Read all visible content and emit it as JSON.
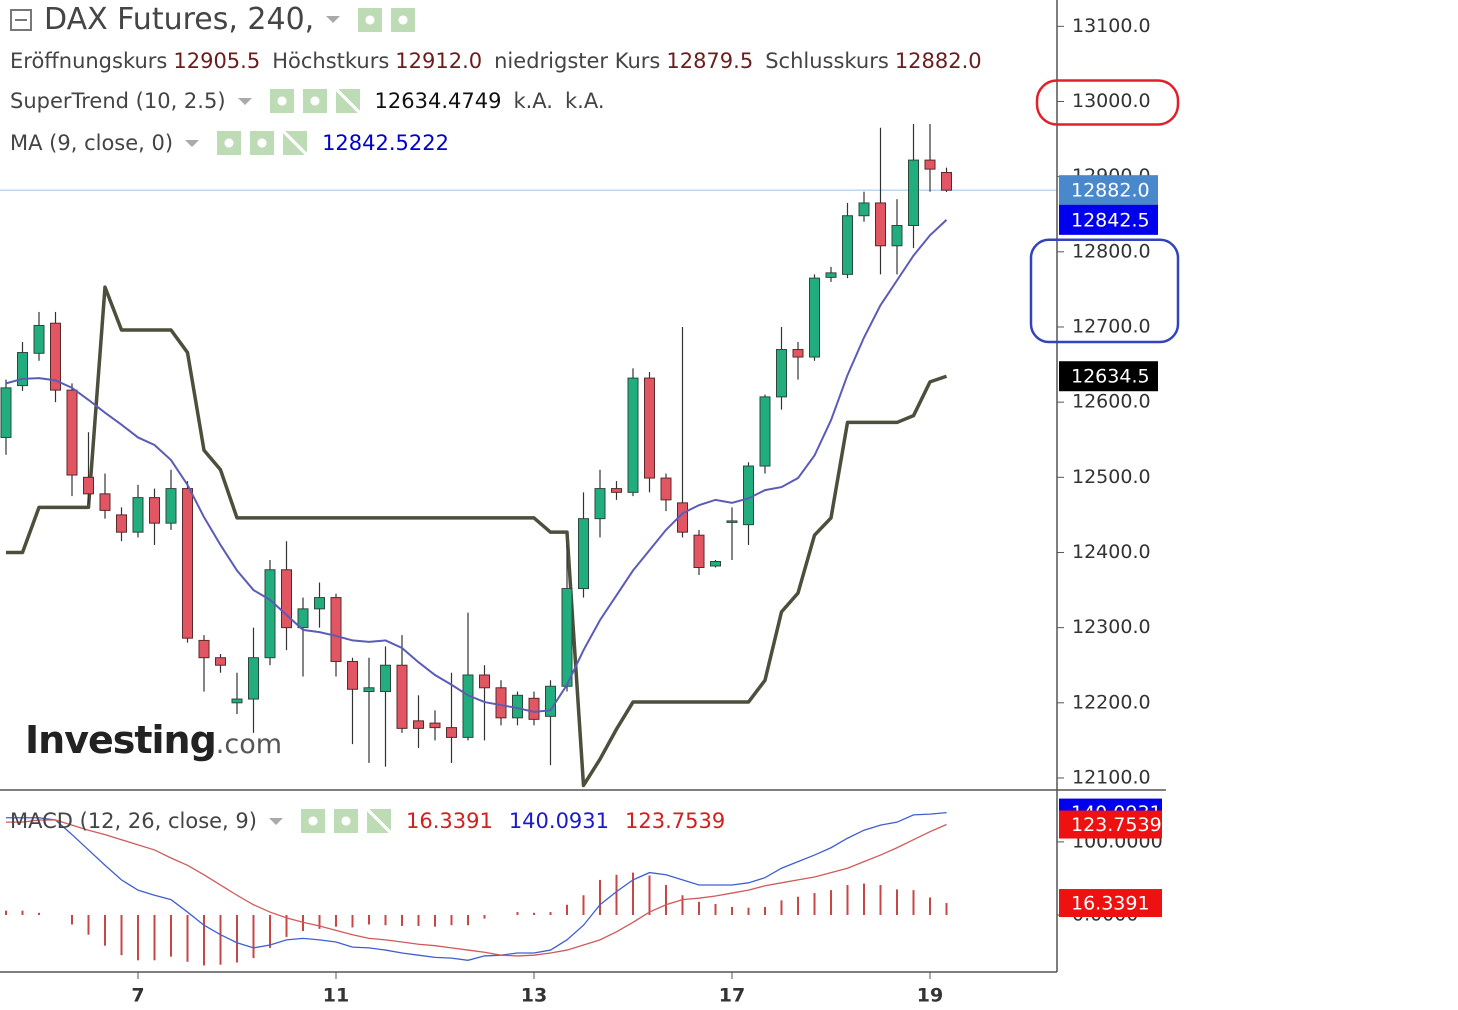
{
  "chart_data": {
    "type": "candlestick",
    "title": "DAX Futures, 240,",
    "legend": [
      {
        "name": "Eröffnungskurs",
        "value": "12905.5"
      },
      {
        "name": "Höchstkurs",
        "value": "12912.0"
      },
      {
        "name": "niedrigster Kurs",
        "value": "12879.5"
      },
      {
        "name": "Schlusskurs",
        "value": "12882.0"
      }
    ],
    "categories": [
      null,
      null,
      null,
      null,
      null,
      null,
      null,
      null,
      "7",
      null,
      null,
      null,
      null,
      null,
      null,
      null,
      null,
      null,
      null,
      null,
      "11",
      null,
      null,
      null,
      null,
      null,
      null,
      null,
      null,
      null,
      null,
      null,
      "13",
      null,
      null,
      null,
      null,
      null,
      null,
      null,
      null,
      null,
      null,
      null,
      "17",
      null,
      null,
      null,
      null,
      null,
      null,
      null,
      null,
      null,
      null,
      null,
      "19",
      null
    ],
    "open": [
      12553,
      12622,
      12665,
      12705,
      12616,
      12500,
      12478,
      12450,
      12427,
      12473,
      12439,
      12485,
      12283,
      12260,
      12200,
      12205,
      12260,
      12377,
      12300,
      12325,
      12340,
      12255,
      12215,
      12215,
      12250,
      12176,
      12173,
      12167,
      12154,
      12237,
      12220,
      12180,
      12206,
      12182,
      12222,
      12352,
      12445,
      12485,
      12480,
      12632,
      12499,
      12466,
      12423,
      12382,
      12440,
      12437,
      12515,
      12607,
      12670,
      12660,
      12766,
      12770,
      12848,
      12865,
      12808,
      12835,
      12922,
      12905.5
    ],
    "high": [
      12630,
      12680,
      12720,
      12720,
      12625,
      12560,
      12505,
      12460,
      12490,
      12485,
      12510,
      12495,
      12290,
      12265,
      12240,
      12300,
      12390,
      12415,
      12340,
      12360,
      12345,
      12260,
      12260,
      12275,
      12290,
      12210,
      12190,
      12240,
      12320,
      12250,
      12230,
      12215,
      12215,
      12230,
      12410,
      12480,
      12510,
      12495,
      12645,
      12640,
      12505,
      12700,
      12430,
      12390,
      12460,
      12520,
      12610,
      12700,
      12680,
      12770,
      12780,
      12865,
      12880,
      12965,
      12870,
      12970,
      12970,
      12912.0
    ],
    "low": [
      12530,
      12615,
      12655,
      12600,
      12475,
      12465,
      12445,
      12415,
      12420,
      12410,
      12430,
      12280,
      12215,
      12240,
      12185,
      12160,
      12250,
      12270,
      12235,
      12300,
      12235,
      12145,
      12120,
      12115,
      12160,
      12140,
      12150,
      12120,
      12150,
      12150,
      12170,
      12170,
      12170,
      12117,
      12215,
      12340,
      12420,
      12470,
      12475,
      12480,
      12455,
      12420,
      12370,
      12380,
      12390,
      12410,
      12505,
      12590,
      12630,
      12655,
      12760,
      12765,
      12840,
      12770,
      12770,
      12805,
      12880,
      12879.5
    ],
    "close": [
      12619,
      12666,
      12702,
      12616,
      12503,
      12478,
      12456,
      12427,
      12473,
      12439,
      12485,
      12286,
      12260,
      12250,
      12205,
      12260,
      12377,
      12300,
      12325,
      12340,
      12255,
      12218,
      12220,
      12250,
      12166,
      12166,
      12167,
      12154,
      12237,
      12220,
      12180,
      12210,
      12178,
      12222,
      12352,
      12445,
      12485,
      12480,
      12632,
      12499,
      12470,
      12427,
      12380,
      12388,
      12442,
      12515,
      12607,
      12670,
      12660,
      12765,
      12772,
      12848,
      12865,
      12808,
      12835,
      12922,
      12910,
      12882.0
    ],
    "up_color": "#22ad7e",
    "down_color": "#e25563",
    "ylim": [
      12084,
      13135
    ],
    "yticks": [
      {
        "value": 12100,
        "label": "12100.0"
      },
      {
        "value": 12200,
        "label": "12200.0"
      },
      {
        "value": 12300,
        "label": "12300.0"
      },
      {
        "value": 12400,
        "label": "12400.0"
      },
      {
        "value": 12500,
        "label": "12500.0"
      },
      {
        "value": 12600,
        "label": "12600.0"
      },
      {
        "value": 12700,
        "label": "12700.0"
      },
      {
        "value": 12800,
        "label": "12800.0"
      },
      {
        "value": 12900,
        "label": "12900.0"
      },
      {
        "value": 13000,
        "label": "13000.0"
      },
      {
        "value": 13100,
        "label": "13100.0"
      }
    ],
    "supertrend": {
      "name": "SuperTrend (10, 2.5)",
      "color": "#4b4f3c",
      "legend_values": [
        "12634.4749",
        "k.A.",
        "k.A."
      ],
      "values": [
        12400,
        12400,
        12460,
        12460,
        12460,
        12460,
        12753,
        12696,
        12696,
        12696,
        12696,
        12666,
        12536,
        12510,
        12446,
        12446,
        12446,
        12446,
        12446,
        12446,
        12446,
        12446,
        12446,
        12446,
        12446,
        12446,
        12446,
        12446,
        12446,
        12446,
        12446,
        12446,
        12446,
        12427,
        12427,
        12090,
        12125,
        12165,
        12201,
        12201,
        12201,
        12201,
        12201,
        12201,
        12201,
        12201,
        12230,
        12321,
        12346,
        12423,
        12446,
        12573,
        12573,
        12573,
        12573,
        12582,
        12627,
        12634.4749
      ]
    },
    "ma": {
      "name": "MA (9, close, 0)",
      "color": "#5a5cb6",
      "legend_value": "12842.5222",
      "values": [
        12625,
        12631,
        12632,
        12629,
        12619,
        12603,
        12586,
        12570,
        12553,
        12543,
        12523,
        12490,
        12447,
        12410,
        12376,
        12350,
        12337,
        12317,
        12297,
        12294,
        12289,
        12283,
        12281,
        12283,
        12273,
        12254,
        12237,
        12224,
        12210,
        12201,
        12197,
        12193,
        12188,
        12190,
        12224,
        12270,
        12310,
        12343,
        12376,
        12403,
        12430,
        12452,
        12463,
        12470,
        12466,
        12472,
        12483,
        12487,
        12499,
        12529,
        12576,
        12636,
        12686,
        12729,
        12762,
        12795,
        12822,
        12842.5222
      ]
    },
    "last_price": {
      "value": 12882.0,
      "color": "#a9c8ec"
    },
    "price_tags": [
      {
        "value": 12882.0,
        "label": "12882.0",
        "color": "#4a88cc"
      },
      {
        "value": 12842.5222,
        "label": "12842.5",
        "color": "#0000ee"
      },
      {
        "value": 12634.4749,
        "label": "12634.5",
        "color": "#000000"
      }
    ],
    "annotations": [
      {
        "value": 13000,
        "color": "#e0202a",
        "shape": "ellipse"
      },
      {
        "value": [
          12700,
          12800
        ],
        "color": "#3344bb",
        "shape": "box"
      }
    ],
    "macd": {
      "name": "MACD (12, 26, close, 9)",
      "ylim": [
        -78,
        171
      ],
      "yticks": [
        {
          "value": 0,
          "label": "0.0000"
        },
        {
          "value": 100,
          "label": "100.0000"
        }
      ],
      "series": [
        {
          "type": "bar",
          "color": "#c84646",
          "legend_value": "16.3391",
          "values": [
            6,
            6,
            3,
            0,
            -13,
            -27,
            -42,
            -55,
            -62,
            -62,
            -57,
            -64,
            -69,
            -68,
            -65,
            -59,
            -45,
            -30,
            -22,
            -19,
            -16,
            -17,
            -13,
            -14,
            -15,
            -15,
            -16,
            -14,
            -14,
            -5,
            0,
            4,
            3,
            4,
            14,
            27,
            48,
            55,
            58,
            54,
            41,
            27,
            18,
            15,
            11,
            10,
            11,
            20,
            25,
            30,
            34,
            41,
            43,
            41,
            35,
            34,
            24,
            16.3391
          ]
        },
        {
          "type": "line",
          "color": "#3f5fd0",
          "legend_value": "140.0931",
          "values": [
            133,
            133,
            133,
            130,
            110,
            89,
            68,
            48,
            34,
            27,
            21,
            4,
            -14,
            -27,
            -38,
            -45,
            -41,
            -34,
            -32,
            -34,
            -37,
            -44,
            -45,
            -48,
            -52,
            -55,
            -58,
            -59,
            -62,
            -56,
            -55,
            -52,
            -52,
            -48,
            -34,
            -14,
            14,
            32,
            48,
            58,
            55,
            48,
            41,
            41,
            41,
            44,
            51,
            64,
            73,
            82,
            92,
            105,
            116,
            123,
            127,
            137,
            138,
            140.0931
          ]
        },
        {
          "type": "line",
          "color": "#d05a5a",
          "legend_value": "123.7539",
          "values": [
            127,
            127,
            130,
            130,
            123,
            116,
            110,
            103,
            96,
            89,
            78,
            68,
            55,
            41,
            27,
            14,
            4,
            -4,
            -10,
            -15,
            -21,
            -27,
            -32,
            -34,
            -37,
            -40,
            -42,
            -45,
            -48,
            -51,
            -55,
            -56,
            -55,
            -52,
            -48,
            -41,
            -34,
            -23,
            -10,
            4,
            14,
            21,
            23,
            26,
            30,
            34,
            40,
            44,
            48,
            52,
            58,
            64,
            73,
            82,
            92,
            103,
            114,
            123.7539
          ]
        }
      ],
      "tag_order": [
        1,
        2,
        0
      ],
      "tag_colors": [
        "#ee1111",
        "#0000ee",
        "#ee1111"
      ]
    },
    "logo": [
      "Investing",
      ".com"
    ]
  }
}
